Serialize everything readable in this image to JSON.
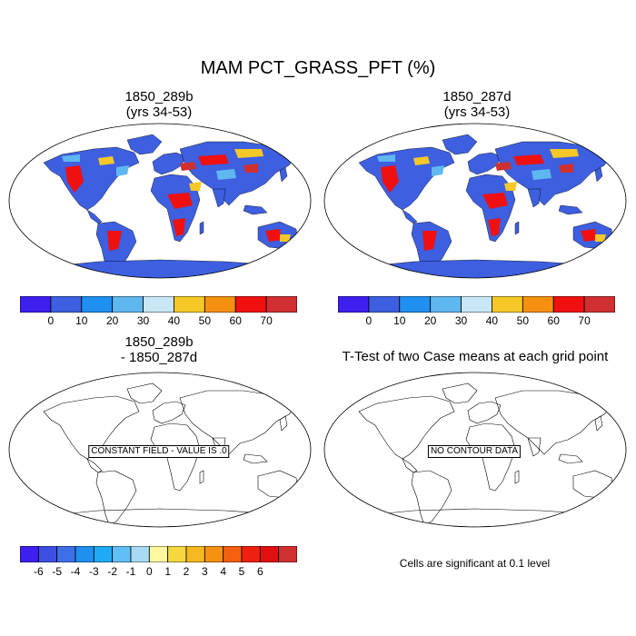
{
  "figure": {
    "title": "MAM PCT_GRASS_PFT (%)"
  },
  "panels": [
    {
      "title_line1": "1850_289b",
      "title_line2": "(yrs 34-53)",
      "kind": "field"
    },
    {
      "title_line1": "1850_287d",
      "title_line2": "(yrs 34-53)",
      "kind": "field"
    },
    {
      "title_line1": "1850_289b",
      "title_line2": "- 1850_287d",
      "kind": "diff",
      "notice": "CONSTANT FIELD - VALUE IS .0"
    },
    {
      "title_line1": "T-Test of two Case means at each grid point",
      "title_line2": "",
      "kind": "ttest",
      "notice": "NO CONTOUR DATA"
    }
  ],
  "colorbar_field": {
    "colors": [
      "#3d1ff0",
      "#3d5fe0",
      "#1f8ff0",
      "#5fb7f0",
      "#c8e6f5",
      "#f5c828",
      "#f59010",
      "#f01010",
      "#d03030"
    ],
    "labels": [
      "0",
      "10",
      "20",
      "30",
      "40",
      "50",
      "60",
      "70"
    ]
  },
  "colorbar_diff": {
    "colors": [
      "#3d1ff0",
      "#3d4fe0",
      "#3d6fe8",
      "#1f8ff0",
      "#20aaf5",
      "#60c0f5",
      "#a8daf5",
      "#fff8a0",
      "#f5d840",
      "#f5b820",
      "#f59010",
      "#f56010",
      "#f02010",
      "#e01010",
      "#d03030"
    ],
    "labels": [
      "-6",
      "-5",
      "-4",
      "-3",
      "-2",
      "-1",
      "0",
      "1",
      "2",
      "3",
      "4",
      "5",
      "6"
    ]
  },
  "caption": "Cells are significant at 0.1 level",
  "map_colors": {
    "ocean": "#ffffff",
    "land_low": "#3d5fe0",
    "land_mid": "#5fb7f0",
    "land_high": "#f01010",
    "land_warm": "#f5c828"
  }
}
